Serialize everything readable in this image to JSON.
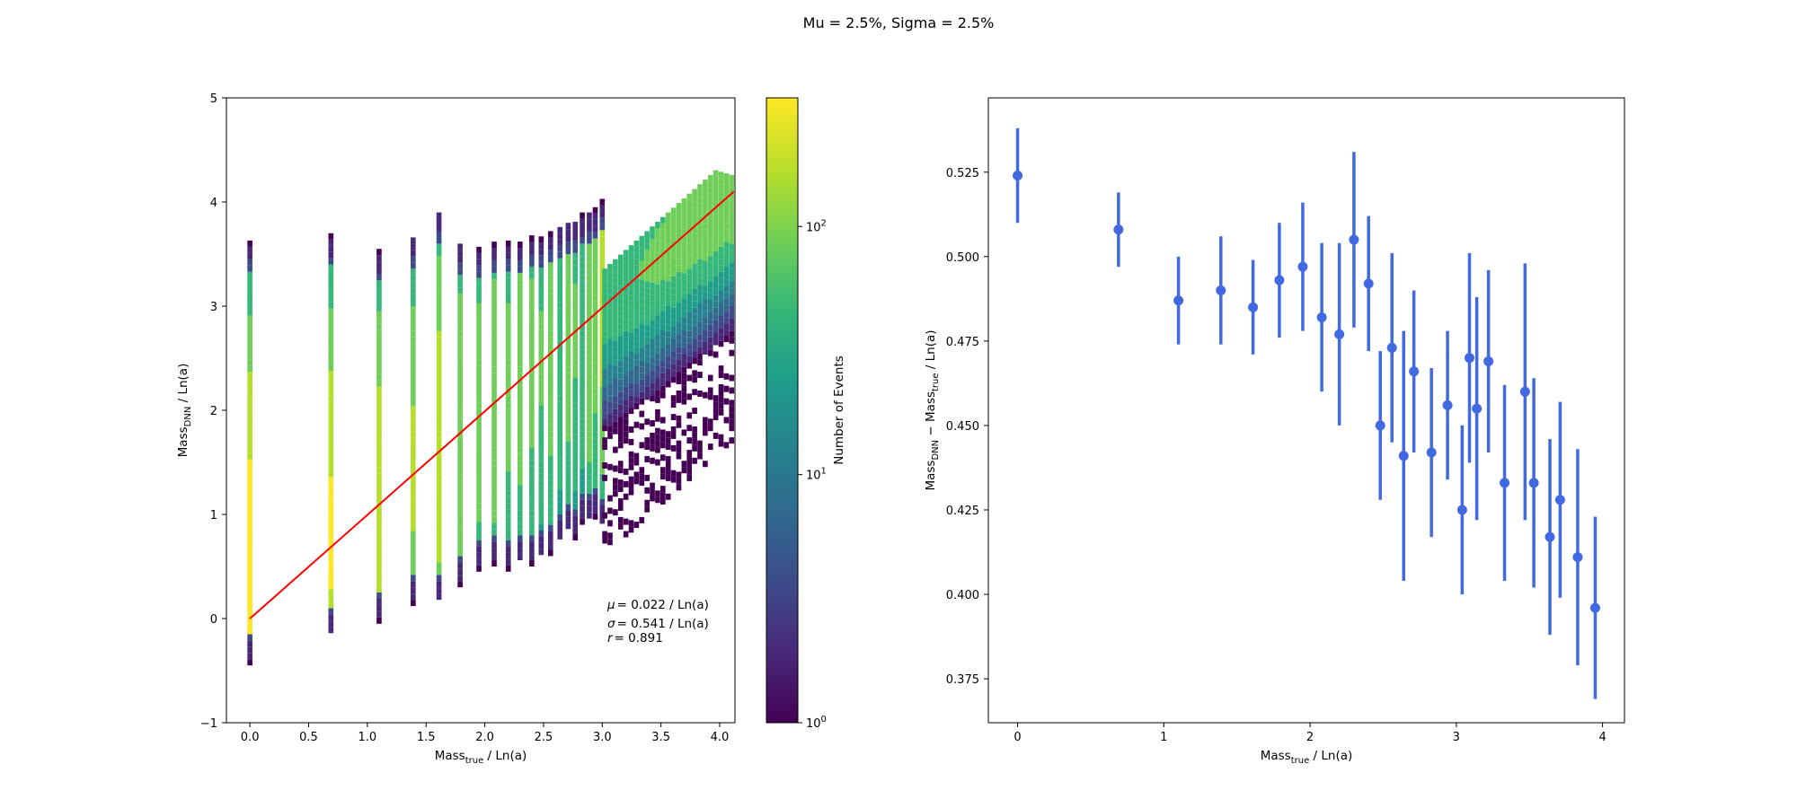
{
  "figure": {
    "title": "Mu = 2.5%, Sigma = 2.5%"
  },
  "colors": {
    "fit_line": "#ff0000",
    "errorbar": "#4169e1",
    "viridis": [
      "#440154",
      "#482878",
      "#3e4a89",
      "#31688e",
      "#26828e",
      "#1f9e89",
      "#35b779",
      "#6ece58",
      "#b5de2b",
      "#fde725"
    ]
  },
  "chart_data": [
    {
      "type": "heatmap",
      "panel": "left",
      "xlabel": {
        "main": "Mass",
        "sub": "true",
        "rest": " / Ln(a)"
      },
      "ylabel": {
        "main": "Mass",
        "sub": "DNN",
        "rest": " / Ln(a)"
      },
      "xlim": [
        -0.2,
        4.13
      ],
      "ylim": [
        -1,
        5
      ],
      "xticks": [
        "0.0",
        "0.5",
        "1.0",
        "1.5",
        "2.0",
        "2.5",
        "3.0",
        "3.5",
        "4.0"
      ],
      "xtick_values": [
        0,
        0.5,
        1.0,
        1.5,
        2.0,
        2.5,
        3.0,
        3.5,
        4.0
      ],
      "yticks": [
        "−1",
        "0",
        "1",
        "2",
        "3",
        "4",
        "5"
      ],
      "ytick_values": [
        -1,
        0,
        1,
        2,
        3,
        4,
        5
      ],
      "fit_line": {
        "x": [
          0.0,
          4.12
        ],
        "y": [
          0.0,
          4.1
        ]
      },
      "columns_note": "Mass_true columns at ln(A) values",
      "columns": [
        {
          "x": 0.0,
          "y_min": -0.45,
          "y_max": 3.6,
          "peak_y": 0.6,
          "peak_count": 300
        },
        {
          "x": 0.69,
          "y_min": -0.2,
          "y_max": 3.65,
          "peak_y": 0.8,
          "peak_count": 260
        },
        {
          "x": 1.1,
          "y_min": -0.05,
          "y_max": 3.5,
          "peak_y": 1.1,
          "peak_count": 180
        },
        {
          "x": 1.39,
          "y_min": 0.12,
          "y_max": 3.65,
          "peak_y": 1.4,
          "peak_count": 140
        },
        {
          "x": 1.61,
          "y_min": 0.12,
          "y_max": 3.9,
          "peak_y": 1.6,
          "peak_count": 180
        },
        {
          "x": 1.79,
          "y_min": 0.3,
          "y_max": 3.6,
          "peak_y": 1.8,
          "peak_count": 110
        },
        {
          "x": 1.95,
          "y_min": 0.45,
          "y_max": 3.55,
          "peak_y": 1.95,
          "peak_count": 90
        },
        {
          "x": 2.08,
          "y_min": 0.5,
          "y_max": 3.6,
          "peak_y": 2.05,
          "peak_count": 100
        },
        {
          "x": 2.2,
          "y_min": 0.45,
          "y_max": 3.6,
          "peak_y": 2.2,
          "peak_count": 80
        },
        {
          "x": 2.3,
          "y_min": 0.5,
          "y_max": 3.6,
          "peak_y": 2.3,
          "peak_count": 90
        },
        {
          "x": 2.4,
          "y_min": 0.5,
          "y_max": 3.65,
          "peak_y": 2.4,
          "peak_count": 80
        },
        {
          "x": 2.48,
          "y_min": 0.55,
          "y_max": 3.65,
          "peak_y": 2.45,
          "peak_count": 70
        },
        {
          "x": 2.56,
          "y_min": 0.6,
          "y_max": 3.7,
          "peak_y": 2.55,
          "peak_count": 90
        },
        {
          "x": 2.64,
          "y_min": 0.7,
          "y_max": 3.75,
          "peak_y": 2.6,
          "peak_count": 60
        },
        {
          "x": 2.71,
          "y_min": 0.8,
          "y_max": 3.8,
          "peak_y": 2.7,
          "peak_count": 90
        },
        {
          "x": 2.77,
          "y_min": 0.75,
          "y_max": 3.8,
          "peak_y": 2.75,
          "peak_count": 70
        },
        {
          "x": 2.83,
          "y_min": 0.9,
          "y_max": 3.85,
          "peak_y": 2.8,
          "peak_count": 60
        },
        {
          "x": 2.89,
          "y_min": 0.9,
          "y_max": 3.9,
          "peak_y": 2.9,
          "peak_count": 120
        },
        {
          "x": 2.94,
          "y_min": 0.95,
          "y_max": 3.9,
          "peak_y": 2.95,
          "peak_count": 90
        },
        {
          "x": 3.0,
          "y_min": 0.85,
          "y_max": 4.0,
          "peak_y": 3.0,
          "peak_count": 150
        }
      ],
      "dense_region": {
        "x_range": [
          3.0,
          4.12
        ],
        "y_center_slope": 1.0,
        "y_spread": 1.1,
        "peak_count": 120
      },
      "annotations": [
        {
          "symbol": "μ",
          "text": "=  0.022 / Ln(a)"
        },
        {
          "symbol": "σ",
          "text": "=  0.541 / Ln(a)"
        },
        {
          "symbol": "r",
          "text": "= 0.891"
        }
      ],
      "colorbar": {
        "label": "Number of Events",
        "scale": "log",
        "range": [
          1,
          330
        ],
        "ticks": [
          {
            "base": "10",
            "exp": "0",
            "value": 1
          },
          {
            "base": "10",
            "exp": "1",
            "value": 10
          },
          {
            "base": "10",
            "exp": "2",
            "value": 100
          }
        ]
      }
    },
    {
      "type": "scatter",
      "panel": "right",
      "errorbars": true,
      "xlabel": {
        "main": "Mass",
        "sub": "true",
        "rest": " / Ln(a)"
      },
      "ylabel": {
        "main": "Mass",
        "sub": "DNN",
        "mid": " − Mass",
        "sub2": "true",
        "rest": " / Ln(a)"
      },
      "xlim": [
        -0.2,
        4.15
      ],
      "ylim": [
        0.362,
        0.547
      ],
      "xticks": [
        "0",
        "1",
        "2",
        "3",
        "4"
      ],
      "xtick_values": [
        0,
        1,
        2,
        3,
        4
      ],
      "yticks": [
        "0.375",
        "0.400",
        "0.425",
        "0.450",
        "0.475",
        "0.500",
        "0.525"
      ],
      "ytick_values": [
        0.375,
        0.4,
        0.425,
        0.45,
        0.475,
        0.5,
        0.525
      ],
      "points": [
        {
          "x": 0.0,
          "y": 0.524,
          "err": 0.014
        },
        {
          "x": 0.69,
          "y": 0.508,
          "err": 0.011
        },
        {
          "x": 1.1,
          "y": 0.487,
          "err": 0.013
        },
        {
          "x": 1.39,
          "y": 0.49,
          "err": 0.016
        },
        {
          "x": 1.61,
          "y": 0.485,
          "err": 0.014
        },
        {
          "x": 1.79,
          "y": 0.493,
          "err": 0.017
        },
        {
          "x": 1.95,
          "y": 0.497,
          "err": 0.019
        },
        {
          "x": 2.08,
          "y": 0.482,
          "err": 0.022
        },
        {
          "x": 2.2,
          "y": 0.477,
          "err": 0.027
        },
        {
          "x": 2.3,
          "y": 0.505,
          "err": 0.026
        },
        {
          "x": 2.4,
          "y": 0.492,
          "err": 0.02
        },
        {
          "x": 2.48,
          "y": 0.45,
          "err": 0.022
        },
        {
          "x": 2.56,
          "y": 0.473,
          "err": 0.028
        },
        {
          "x": 2.64,
          "y": 0.441,
          "err": 0.037
        },
        {
          "x": 2.71,
          "y": 0.466,
          "err": 0.024
        },
        {
          "x": 2.83,
          "y": 0.442,
          "err": 0.025
        },
        {
          "x": 2.94,
          "y": 0.456,
          "err": 0.022
        },
        {
          "x": 3.04,
          "y": 0.425,
          "err": 0.025
        },
        {
          "x": 3.09,
          "y": 0.47,
          "err": 0.031
        },
        {
          "x": 3.14,
          "y": 0.455,
          "err": 0.033
        },
        {
          "x": 3.22,
          "y": 0.469,
          "err": 0.027
        },
        {
          "x": 3.33,
          "y": 0.433,
          "err": 0.029
        },
        {
          "x": 3.47,
          "y": 0.46,
          "err": 0.038
        },
        {
          "x": 3.53,
          "y": 0.433,
          "err": 0.031
        },
        {
          "x": 3.64,
          "y": 0.417,
          "err": 0.029
        },
        {
          "x": 3.71,
          "y": 0.428,
          "err": 0.029
        },
        {
          "x": 3.83,
          "y": 0.411,
          "err": 0.032
        },
        {
          "x": 3.95,
          "y": 0.396,
          "err": 0.027
        }
      ]
    }
  ]
}
